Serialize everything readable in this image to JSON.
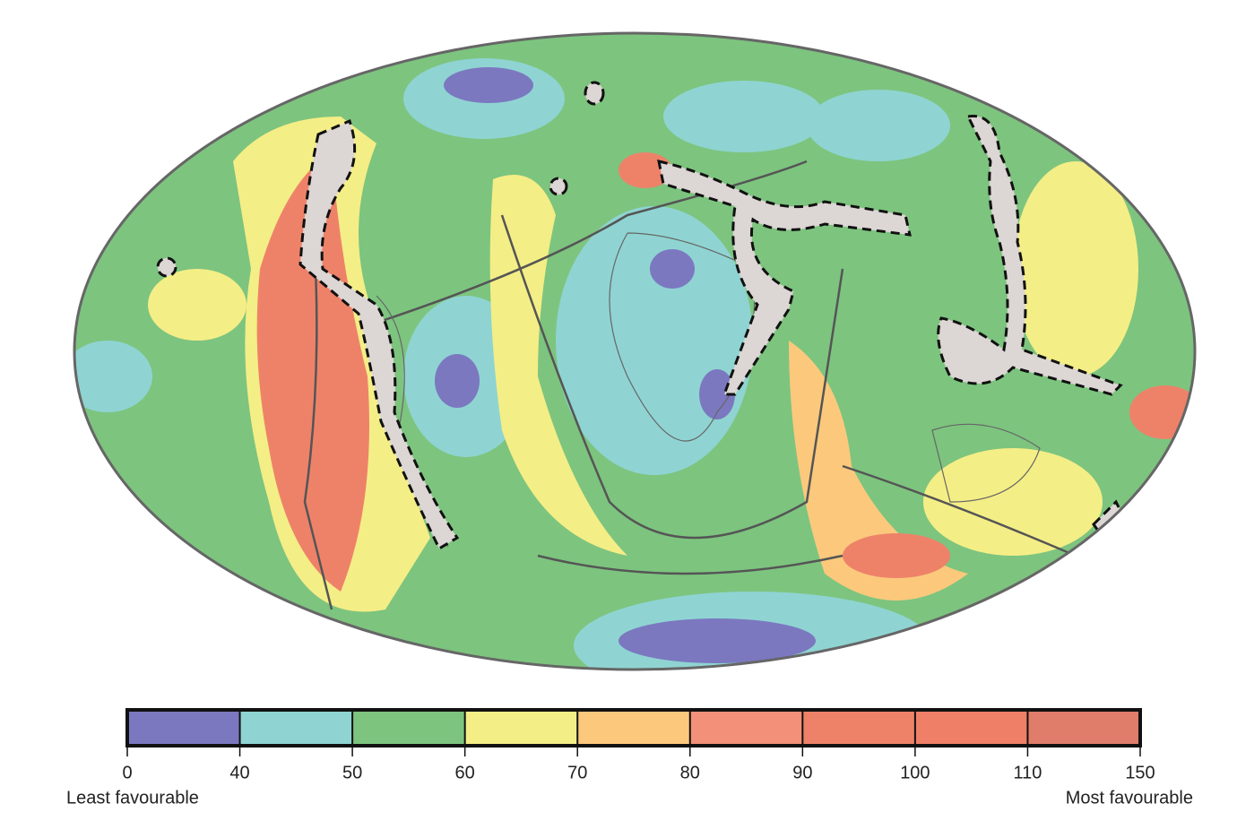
{
  "legend": {
    "ticks": [
      0,
      40,
      50,
      60,
      70,
      80,
      90,
      100,
      110,
      150
    ],
    "colors": [
      "#7b78c0",
      "#8fd4d2",
      "#7dc47f",
      "#f4ee86",
      "#fcc97c",
      "#f29079",
      "#ee8269",
      "#ef7f67",
      "#e07c6a"
    ],
    "low_label": "Least favourable",
    "high_label": "Most favourable"
  }
}
